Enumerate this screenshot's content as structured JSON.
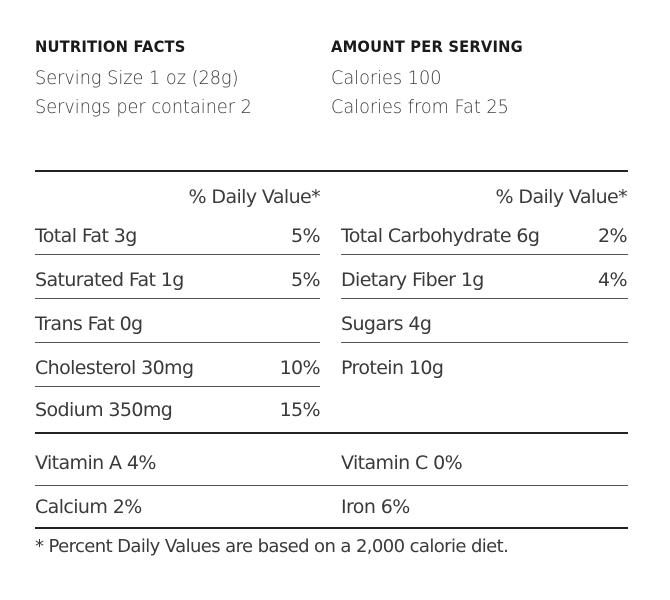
{
  "header": {
    "left": {
      "title": "NUTRITION FACTS",
      "serving_size": "Serving Size 1 oz (28g)",
      "servings_per_container": "Servings per container 2"
    },
    "right": {
      "title": "AMOUNT PER SERVING",
      "calories": "Calories 100",
      "calories_from_fat": "Calories from Fat 25"
    }
  },
  "daily_value_header": "% Daily Value*",
  "left_nutrients": [
    {
      "name": "Total Fat 3g",
      "percent": "5%"
    },
    {
      "name": "Saturated Fat 1g",
      "percent": "5%"
    },
    {
      "name": "Trans Fat 0g",
      "percent": ""
    },
    {
      "name": "Cholesterol 30mg",
      "percent": "10%"
    },
    {
      "name": "Sodium 350mg",
      "percent": "15%"
    }
  ],
  "right_nutrients": [
    {
      "name": "Total Carbohydrate 6g",
      "percent": "2%"
    },
    {
      "name": "Dietary Fiber 1g",
      "percent": "4%"
    },
    {
      "name": "Sugars 4g",
      "percent": ""
    },
    {
      "name": "Protein 10g",
      "percent": ""
    }
  ],
  "vitamins": {
    "vitamin_a": "Vitamin A 4%",
    "vitamin_c": "Vitamin C 0%",
    "calcium": "Calcium 2%",
    "iron": "Iron 6%"
  },
  "footnote": "* Percent Daily Values are based on a 2,000 calorie diet."
}
